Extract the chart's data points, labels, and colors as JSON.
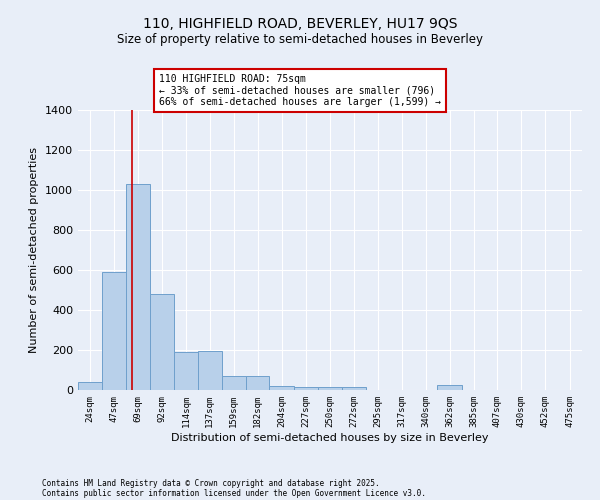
{
  "title1": "110, HIGHFIELD ROAD, BEVERLEY, HU17 9QS",
  "title2": "Size of property relative to semi-detached houses in Beverley",
  "xlabel": "Distribution of semi-detached houses by size in Beverley",
  "ylabel": "Number of semi-detached properties",
  "bar_color": "#b8d0ea",
  "bar_edge_color": "#6fa0cc",
  "bg_color": "#e8eef8",
  "grid_color": "#ffffff",
  "annotation_text": "110 HIGHFIELD ROAD: 75sqm\n← 33% of semi-detached houses are smaller (796)\n66% of semi-detached houses are larger (1,599) →",
  "annotation_box_color": "#ffffff",
  "annotation_border_color": "#cc0000",
  "redline_x": 75,
  "redline_color": "#cc0000",
  "categories": [
    "24sqm",
    "47sqm",
    "69sqm",
    "92sqm",
    "114sqm",
    "137sqm",
    "159sqm",
    "182sqm",
    "204sqm",
    "227sqm",
    "250sqm",
    "272sqm",
    "295sqm",
    "317sqm",
    "340sqm",
    "362sqm",
    "385sqm",
    "407sqm",
    "430sqm",
    "452sqm",
    "475sqm"
  ],
  "bin_edges": [
    24,
    47,
    69,
    92,
    114,
    137,
    159,
    182,
    204,
    227,
    250,
    272,
    295,
    317,
    340,
    362,
    385,
    407,
    430,
    452,
    475,
    498
  ],
  "values": [
    40,
    590,
    1030,
    480,
    190,
    195,
    70,
    70,
    20,
    15,
    15,
    15,
    0,
    0,
    0,
    25,
    0,
    0,
    0,
    0,
    0
  ],
  "ylim": [
    0,
    1400
  ],
  "yticks": [
    0,
    200,
    400,
    600,
    800,
    1000,
    1200,
    1400
  ],
  "footnote1": "Contains HM Land Registry data © Crown copyright and database right 2025.",
  "footnote2": "Contains public sector information licensed under the Open Government Licence v3.0."
}
